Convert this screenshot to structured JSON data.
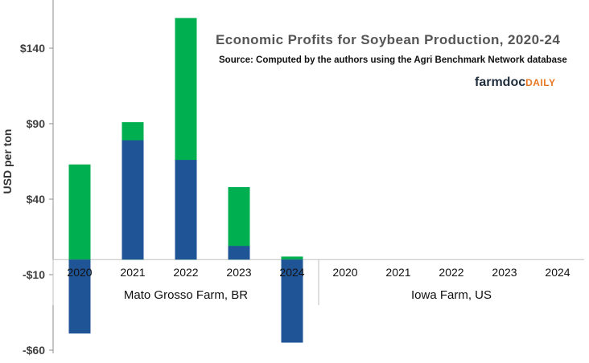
{
  "chart_data": {
    "type": "bar",
    "title": "Economic Profits for Soybean Production, 2020-24",
    "subtitle": "Source: Computed by the authors using the Agri Benchmark Network database",
    "brand": {
      "part1": "farmdoc",
      "part2": "DAILY"
    },
    "ylabel": "USD per ton",
    "ylim": [
      -60,
      160
    ],
    "yticks": [
      {
        "value": 140,
        "label": "$140"
      },
      {
        "value": 90,
        "label": "$90"
      },
      {
        "value": 40,
        "label": "$40"
      },
      {
        "value": -10,
        "label": "-$10"
      },
      {
        "value": -60,
        "label": "-$60"
      }
    ],
    "groups": [
      {
        "name": "Mato Grosso Farm, BR",
        "color": "#00b050",
        "categories": [
          "2020",
          "2021",
          "2022",
          "2023",
          "2024"
        ],
        "values": [
          63,
          91,
          160,
          48,
          2
        ]
      },
      {
        "name": "Iowa Farm, US",
        "color": "#1f5597",
        "categories": [
          "2020",
          "2021",
          "2022",
          "2023",
          "2024"
        ],
        "values": [
          -49,
          79,
          66,
          9,
          -55
        ]
      }
    ],
    "grid": false,
    "legend": "none"
  }
}
